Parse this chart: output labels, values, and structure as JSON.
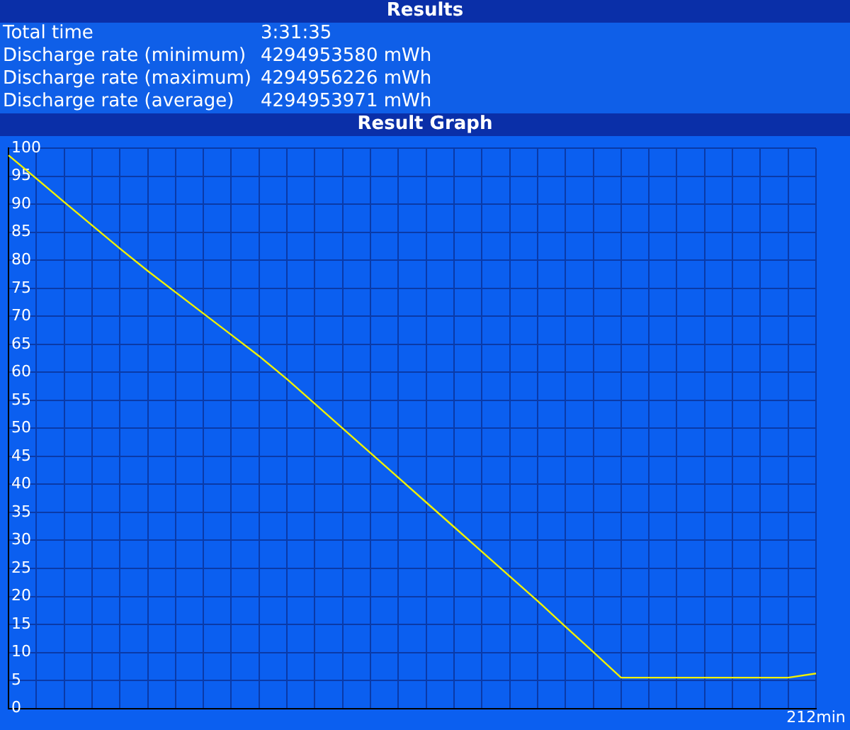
{
  "chart_data": {
    "type": "line",
    "title": "Result Graph",
    "annotations": [
      "Results",
      "Total time",
      "3:31:35",
      "Discharge rate (minimum)",
      "4294953580 mWh",
      "Discharge rate (maximum)",
      "4294956226 mWh",
      "Discharge rate (average)",
      "4294953971 mWh"
    ],
    "categories": [
      null,
      null,
      null,
      null,
      null,
      null,
      null,
      null,
      null,
      null,
      null,
      null,
      null,
      null,
      null,
      null,
      null,
      null,
      null,
      null,
      null,
      null,
      null,
      null,
      null,
      null,
      null,
      null,
      null,
      "212min"
    ],
    "series": [
      {
        "color": "#f0f000",
        "values": [
          98.75,
          94.6,
          90.4,
          86.25,
          82.1,
          78.1,
          74.3,
          70.5,
          66.7,
          62.9,
          58.8,
          54.4,
          50.0,
          45.6,
          41.2,
          36.8,
          32.4,
          28.0,
          23.6,
          19.2,
          14.6,
          10.1,
          5.5,
          5.5,
          5.5,
          5.5,
          5.5,
          5.5,
          5.5,
          6.25
        ]
      }
    ],
    "ylim": [
      0,
      100
    ],
    "yticks": [
      0,
      5,
      10,
      15,
      20,
      25,
      30,
      35,
      40,
      45,
      50,
      55,
      60,
      65,
      70,
      75,
      80,
      85,
      90,
      95,
      100
    ],
    "grid": true,
    "marker": "none",
    "line_style": "solid"
  }
}
